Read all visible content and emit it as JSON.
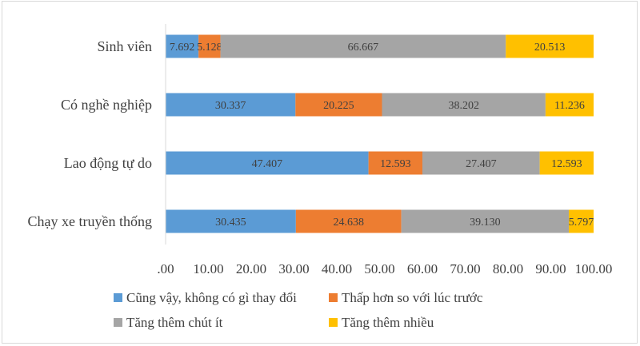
{
  "chart_data": {
    "type": "bar",
    "orientation": "horizontal",
    "stacked": true,
    "categories": [
      "Sinh viên",
      "Có nghề nghiệp",
      "Lao động tự do",
      "Chạy xe truyền thống"
    ],
    "series": [
      {
        "name": "Cũng vậy, không có gì thay đổi",
        "color": "#5b9bd5",
        "values": [
          7.692,
          30.337,
          47.407,
          30.435
        ],
        "labels": [
          "7.692",
          "30.337",
          "47.407",
          "30.435"
        ]
      },
      {
        "name": "Thấp hơn so với lúc trước",
        "color": "#ed7d31",
        "values": [
          5.128,
          20.225,
          12.593,
          24.638
        ],
        "labels": [
          "5.128",
          "20.225",
          "12.593",
          "24.638"
        ]
      },
      {
        "name": "Tăng thêm chút ít",
        "color": "#a5a5a5",
        "values": [
          66.667,
          38.202,
          27.407,
          39.13
        ],
        "labels": [
          "66.667",
          "38.202",
          "27.407",
          "39.130"
        ]
      },
      {
        "name": "Tăng thêm nhiều",
        "color": "#ffc000",
        "values": [
          20.513,
          11.236,
          12.593,
          5.797
        ],
        "labels": [
          "20.513",
          "11.236",
          "12.593",
          "5.797"
        ]
      }
    ],
    "xlim": [
      0,
      100
    ],
    "xticks": [
      ".00",
      "10.00",
      "20.00",
      "30.00",
      "40.00",
      "50.00",
      "60.00",
      "70.00",
      "80.00",
      "90.00",
      "100.00"
    ],
    "grid": false,
    "legend_position": "bottom"
  }
}
